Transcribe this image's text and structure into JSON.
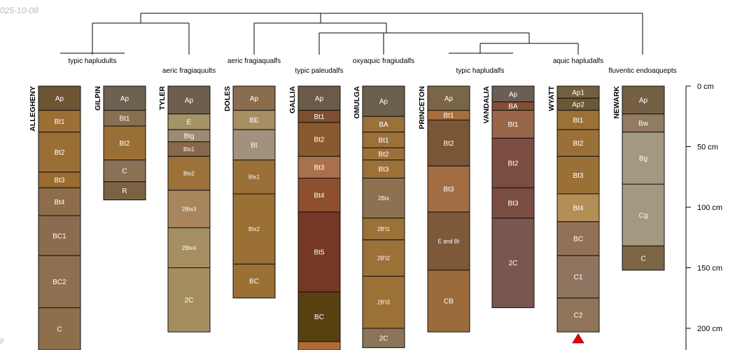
{
  "date_text": "025-10-08",
  "corner_text": "ll",
  "colors": {
    "dendrogram": "#000000",
    "horizon_border": "#111111",
    "water_table_marker": "#e8000b"
  },
  "depth_axis": {
    "unit": "cm",
    "ticks": [
      {
        "depth": 0,
        "label": "0 cm"
      },
      {
        "depth": 50,
        "label": "50 cm"
      },
      {
        "depth": 100,
        "label": "100 cm"
      },
      {
        "depth": 150,
        "label": "150 cm"
      },
      {
        "depth": 200,
        "label": "200 cm"
      }
    ]
  },
  "subgroups": [
    {
      "label": "typic hapludults"
    },
    {
      "label": "aeric fragiaquults"
    },
    {
      "label": "aeric fragiaqualfs"
    },
    {
      "label": "typic paleudalfs"
    },
    {
      "label": "oxyaquic fragiudalfs"
    },
    {
      "label": "typic hapludalfs"
    },
    {
      "label": "aquic hapludalfs"
    },
    {
      "label": "fluventic endoaquepts"
    }
  ],
  "profiles": [
    {
      "name": "ALLEGHENY",
      "horizons": [
        {
          "name": "Ap",
          "top": 0,
          "bottom": 20,
          "color": "#6b5533"
        },
        {
          "name": "Bt1",
          "top": 20,
          "bottom": 38,
          "color": "#9c6f35"
        },
        {
          "name": "Bt2",
          "top": 38,
          "bottom": 71,
          "color": "#9a6f36"
        },
        {
          "name": "Bt3",
          "top": 71,
          "bottom": 84,
          "color": "#9a6c30"
        },
        {
          "name": "Bt4",
          "top": 84,
          "bottom": 107,
          "color": "#8e6d4a"
        },
        {
          "name": "BC1",
          "top": 107,
          "bottom": 140,
          "color": "#8b6c4e"
        },
        {
          "name": "BC2",
          "top": 140,
          "bottom": 183,
          "color": "#8e7050"
        },
        {
          "name": "C",
          "top": 183,
          "bottom": 218,
          "color": "#8e6e4d"
        }
      ]
    },
    {
      "name": "GILPIN",
      "horizons": [
        {
          "name": "Ap",
          "top": 0,
          "bottom": 20,
          "color": "#6e6150"
        },
        {
          "name": "Bt1",
          "top": 20,
          "bottom": 33,
          "color": "#85704f"
        },
        {
          "name": "Bt2",
          "top": 33,
          "bottom": 61,
          "color": "#9a6f35"
        },
        {
          "name": "C",
          "top": 61,
          "bottom": 79,
          "color": "#8a7055"
        },
        {
          "name": "R",
          "top": 79,
          "bottom": 94,
          "color": "#7b6242"
        }
      ]
    },
    {
      "name": "TYLER",
      "horizons": [
        {
          "name": "Ap",
          "top": 0,
          "bottom": 23,
          "color": "#6e5f4d"
        },
        {
          "name": "E",
          "top": 23,
          "bottom": 36,
          "color": "#a69366"
        },
        {
          "name": "Btg",
          "top": 36,
          "bottom": 46,
          "color": "#9c8a73"
        },
        {
          "name": "Btx1",
          "top": 46,
          "bottom": 58,
          "color": "#87694a"
        },
        {
          "name": "Btx2",
          "top": 58,
          "bottom": 86,
          "color": "#9b7139"
        },
        {
          "name": "2Btx3",
          "top": 86,
          "bottom": 117,
          "color": "#a8855c"
        },
        {
          "name": "2Btx4",
          "top": 117,
          "bottom": 150,
          "color": "#a58f62"
        },
        {
          "name": "2C",
          "top": 150,
          "bottom": 203,
          "color": "#a48e60"
        }
      ]
    },
    {
      "name": "DOLES",
      "horizons": [
        {
          "name": "Ap",
          "top": 0,
          "bottom": 20,
          "color": "#8a6d4d"
        },
        {
          "name": "BE",
          "top": 20,
          "bottom": 36,
          "color": "#a68f62"
        },
        {
          "name": "Bt",
          "top": 36,
          "bottom": 61,
          "color": "#a2917d"
        },
        {
          "name": "Btx1",
          "top": 61,
          "bottom": 89,
          "color": "#9b7038"
        },
        {
          "name": "Btx2",
          "top": 89,
          "bottom": 147,
          "color": "#9a7035"
        },
        {
          "name": "BC",
          "top": 147,
          "bottom": 175,
          "color": "#9a7035"
        }
      ]
    },
    {
      "name": "GALLIA",
      "horizons": [
        {
          "name": "Ap",
          "top": 0,
          "bottom": 20,
          "color": "#6b5a45"
        },
        {
          "name": "Bt1",
          "top": 20,
          "bottom": 30,
          "color": "#7e4e2f"
        },
        {
          "name": "Bt2",
          "top": 30,
          "bottom": 58,
          "color": "#885a2d"
        },
        {
          "name": "Bt3",
          "top": 58,
          "bottom": 76,
          "color": "#a9704c"
        },
        {
          "name": "Bt4",
          "top": 76,
          "bottom": 104,
          "color": "#8d4f2e"
        },
        {
          "name": "Bt5",
          "top": 104,
          "bottom": 170,
          "color": "#743824"
        },
        {
          "name": "BC",
          "top": 170,
          "bottom": 211,
          "color": "#59410f"
        },
        {
          "name": "",
          "top": 211,
          "bottom": 218,
          "color": "#b36a35"
        }
      ]
    },
    {
      "name": "OMULGA",
      "horizons": [
        {
          "name": "Ap",
          "top": 0,
          "bottom": 25,
          "color": "#6c5f4d"
        },
        {
          "name": "BA",
          "top": 25,
          "bottom": 38,
          "color": "#9b713a"
        },
        {
          "name": "Bt1",
          "top": 38,
          "bottom": 51,
          "color": "#9b7039"
        },
        {
          "name": "Bt2",
          "top": 51,
          "bottom": 61,
          "color": "#9b713a"
        },
        {
          "name": "Bt3",
          "top": 61,
          "bottom": 76,
          "color": "#9b7137"
        },
        {
          "name": "2Btx",
          "top": 76,
          "bottom": 109,
          "color": "#8e7150"
        },
        {
          "name": "2B't1",
          "top": 109,
          "bottom": 127,
          "color": "#9b7137"
        },
        {
          "name": "2B't2",
          "top": 127,
          "bottom": 157,
          "color": "#9b7137"
        },
        {
          "name": "2B't3",
          "top": 157,
          "bottom": 200,
          "color": "#9b7137"
        },
        {
          "name": "2C",
          "top": 200,
          "bottom": 216,
          "color": "#8b7458"
        }
      ]
    },
    {
      "name": "PRINCETON",
      "horizons": [
        {
          "name": "Ap",
          "top": 0,
          "bottom": 20,
          "color": "#7a6647"
        },
        {
          "name": "Bt1",
          "top": 20,
          "bottom": 28,
          "color": "#a66e3e"
        },
        {
          "name": "Bt2",
          "top": 28,
          "bottom": 66,
          "color": "#7a5536"
        },
        {
          "name": "Bt3",
          "top": 66,
          "bottom": 104,
          "color": "#a36d44"
        },
        {
          "name": "E and Bt",
          "top": 104,
          "bottom": 152,
          "color": "#7d5839"
        },
        {
          "name": "CB",
          "top": 152,
          "bottom": 203,
          "color": "#9b6b3b"
        }
      ]
    },
    {
      "name": "VANDALIA",
      "horizons": [
        {
          "name": "Ap",
          "top": 0,
          "bottom": 13,
          "color": "#6b5f55"
        },
        {
          "name": "BA",
          "top": 13,
          "bottom": 20,
          "color": "#844e35"
        },
        {
          "name": "Bt1",
          "top": 20,
          "bottom": 43,
          "color": "#9a6649"
        },
        {
          "name": "Bt2",
          "top": 43,
          "bottom": 84,
          "color": "#7b4d40"
        },
        {
          "name": "Bt3",
          "top": 84,
          "bottom": 109,
          "color": "#7b4d41"
        },
        {
          "name": "2C",
          "top": 109,
          "bottom": 183,
          "color": "#795650"
        }
      ]
    },
    {
      "name": "WYATT",
      "horizons": [
        {
          "name": "Ap1",
          "top": 0,
          "bottom": 10,
          "color": "#74603f"
        },
        {
          "name": "Ap2",
          "top": 10,
          "bottom": 20,
          "color": "#6b5733"
        },
        {
          "name": "Bt1",
          "top": 20,
          "bottom": 36,
          "color": "#9b7137"
        },
        {
          "name": "Bt2",
          "top": 36,
          "bottom": 58,
          "color": "#9a7038"
        },
        {
          "name": "Bt3",
          "top": 58,
          "bottom": 89,
          "color": "#9a7037"
        },
        {
          "name": "Bt4",
          "top": 89,
          "bottom": 112,
          "color": "#b48e57"
        },
        {
          "name": "BC",
          "top": 112,
          "bottom": 140,
          "color": "#937157"
        },
        {
          "name": "C1",
          "top": 140,
          "bottom": 175,
          "color": "#8f7560"
        },
        {
          "name": "C2",
          "top": 175,
          "bottom": 203,
          "color": "#8f7459"
        }
      ]
    },
    {
      "name": "NEWARK",
      "horizons": [
        {
          "name": "Ap",
          "top": 0,
          "bottom": 23,
          "color": "#766044"
        },
        {
          "name": "Bw",
          "top": 23,
          "bottom": 38,
          "color": "#917b61"
        },
        {
          "name": "Bg",
          "top": 38,
          "bottom": 81,
          "color": "#a39880"
        },
        {
          "name": "Cg",
          "top": 81,
          "bottom": 132,
          "color": "#a39880"
        },
        {
          "name": "C",
          "top": 132,
          "bottom": 152,
          "color": "#7c6545"
        }
      ]
    }
  ]
}
